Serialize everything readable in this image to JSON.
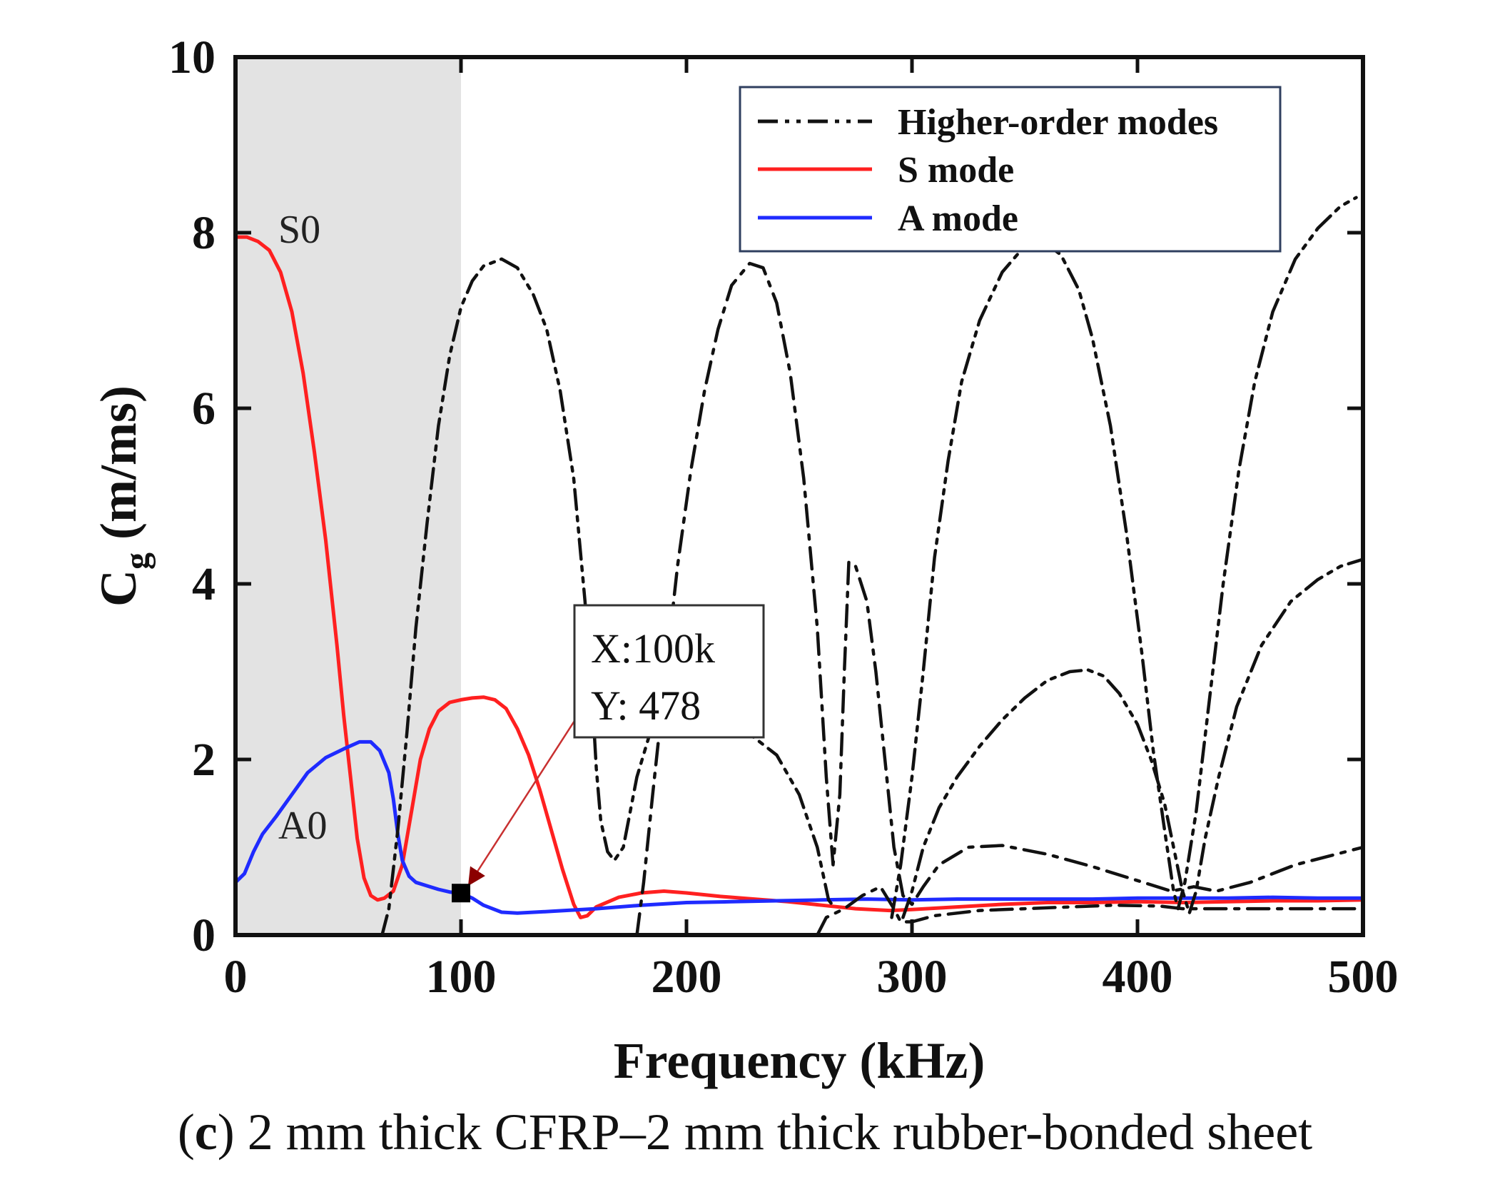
{
  "chart_data": {
    "type": "line",
    "xlabel": "Frequency (kHz)",
    "ylabel_main": "C",
    "ylabel_sub": "g",
    "ylabel_rest": " (m/ms)",
    "xlim": [
      0,
      500
    ],
    "ylim": [
      0,
      10
    ],
    "xticks": [
      0,
      100,
      200,
      300,
      400,
      500
    ],
    "yticks": [
      0,
      2,
      4,
      6,
      8,
      10
    ],
    "shaded_region": {
      "x_from": 0,
      "x_to": 100,
      "color": "#e3e3e3"
    },
    "legend": {
      "placement": "top-right",
      "entries": [
        {
          "label": "Higher-order modes",
          "style": "dashdot",
          "color": "#111111"
        },
        {
          "label": "S mode",
          "style": "solid",
          "color": "#ff2020"
        },
        {
          "label": "A mode",
          "style": "solid",
          "color": "#1f2bff"
        }
      ]
    },
    "annotations": {
      "S0": {
        "text": "S0",
        "x": 20,
        "y": 7.95
      },
      "A0": {
        "text": "A0",
        "x": 20,
        "y": 1.2
      },
      "marker": {
        "x": 100,
        "y": 0.478,
        "line1": "X:100k",
        "line2": "Y: 478"
      }
    },
    "series": [
      {
        "name": "S mode",
        "color": "#ff2020",
        "style": "solid",
        "points": [
          [
            0,
            7.95
          ],
          [
            5,
            7.95
          ],
          [
            10,
            7.9
          ],
          [
            15,
            7.8
          ],
          [
            20,
            7.55
          ],
          [
            25,
            7.1
          ],
          [
            30,
            6.4
          ],
          [
            35,
            5.5
          ],
          [
            40,
            4.5
          ],
          [
            45,
            3.3
          ],
          [
            48,
            2.5
          ],
          [
            51,
            1.8
          ],
          [
            54,
            1.1
          ],
          [
            57,
            0.65
          ],
          [
            60,
            0.45
          ],
          [
            63,
            0.4
          ],
          [
            66,
            0.42
          ],
          [
            70,
            0.5
          ],
          [
            74,
            0.8
          ],
          [
            78,
            1.4
          ],
          [
            82,
            2.0
          ],
          [
            86,
            2.35
          ],
          [
            90,
            2.55
          ],
          [
            95,
            2.65
          ],
          [
            100,
            2.68
          ],
          [
            105,
            2.7
          ],
          [
            110,
            2.71
          ],
          [
            115,
            2.68
          ],
          [
            120,
            2.58
          ],
          [
            125,
            2.35
          ],
          [
            130,
            2.05
          ],
          [
            135,
            1.65
          ],
          [
            140,
            1.2
          ],
          [
            145,
            0.75
          ],
          [
            150,
            0.35
          ],
          [
            153,
            0.2
          ],
          [
            156,
            0.22
          ],
          [
            160,
            0.32
          ],
          [
            170,
            0.43
          ],
          [
            180,
            0.48
          ],
          [
            190,
            0.5
          ],
          [
            200,
            0.48
          ],
          [
            215,
            0.44
          ],
          [
            230,
            0.41
          ],
          [
            245,
            0.38
          ],
          [
            260,
            0.34
          ],
          [
            275,
            0.3
          ],
          [
            290,
            0.28
          ],
          [
            300,
            0.29
          ],
          [
            320,
            0.32
          ],
          [
            340,
            0.35
          ],
          [
            360,
            0.37
          ],
          [
            380,
            0.37
          ],
          [
            400,
            0.38
          ],
          [
            420,
            0.37
          ],
          [
            440,
            0.38
          ],
          [
            460,
            0.39
          ],
          [
            480,
            0.39
          ],
          [
            500,
            0.4
          ]
        ]
      },
      {
        "name": "A mode",
        "color": "#1f2bff",
        "style": "solid",
        "points": [
          [
            0,
            0.6
          ],
          [
            4,
            0.7
          ],
          [
            8,
            0.95
          ],
          [
            12,
            1.15
          ],
          [
            18,
            1.35
          ],
          [
            25,
            1.6
          ],
          [
            32,
            1.85
          ],
          [
            40,
            2.02
          ],
          [
            48,
            2.12
          ],
          [
            55,
            2.2
          ],
          [
            60,
            2.2
          ],
          [
            64,
            2.1
          ],
          [
            68,
            1.85
          ],
          [
            70,
            1.55
          ],
          [
            72,
            1.15
          ],
          [
            74,
            0.85
          ],
          [
            77,
            0.67
          ],
          [
            80,
            0.6
          ],
          [
            85,
            0.56
          ],
          [
            90,
            0.52
          ],
          [
            95,
            0.49
          ],
          [
            100,
            0.478
          ],
          [
            105,
            0.42
          ],
          [
            110,
            0.34
          ],
          [
            118,
            0.26
          ],
          [
            125,
            0.25
          ],
          [
            140,
            0.27
          ],
          [
            160,
            0.3
          ],
          [
            180,
            0.34
          ],
          [
            200,
            0.37
          ],
          [
            220,
            0.38
          ],
          [
            240,
            0.39
          ],
          [
            260,
            0.4
          ],
          [
            280,
            0.41
          ],
          [
            300,
            0.4
          ],
          [
            320,
            0.41
          ],
          [
            340,
            0.41
          ],
          [
            360,
            0.41
          ],
          [
            380,
            0.41
          ],
          [
            400,
            0.42
          ],
          [
            420,
            0.42
          ],
          [
            440,
            0.42
          ],
          [
            460,
            0.43
          ],
          [
            480,
            0.42
          ],
          [
            500,
            0.42
          ]
        ]
      },
      {
        "name": "Higher-order mode 1",
        "color": "#111111",
        "style": "dashdotdot",
        "points": [
          [
            65,
            0.0
          ],
          [
            68,
            0.3
          ],
          [
            72,
            1.2
          ],
          [
            76,
            2.3
          ],
          [
            80,
            3.5
          ],
          [
            85,
            4.7
          ],
          [
            90,
            5.8
          ],
          [
            95,
            6.6
          ],
          [
            100,
            7.15
          ],
          [
            105,
            7.45
          ],
          [
            110,
            7.62
          ],
          [
            118,
            7.7
          ],
          [
            125,
            7.6
          ],
          [
            132,
            7.3
          ],
          [
            138,
            6.9
          ],
          [
            144,
            6.2
          ],
          [
            150,
            5.2
          ],
          [
            155,
            3.8
          ],
          [
            158,
            2.8
          ],
          [
            160,
            1.9
          ],
          [
            162,
            1.3
          ],
          [
            165,
            0.95
          ],
          [
            168,
            0.85
          ],
          [
            172,
            1.0
          ],
          [
            178,
            1.8
          ],
          [
            185,
            2.4
          ],
          [
            195,
            2.6
          ],
          [
            210,
            2.5
          ],
          [
            225,
            2.35
          ],
          [
            240,
            2.05
          ],
          [
            250,
            1.6
          ],
          [
            258,
            1.0
          ],
          [
            263,
            0.4
          ],
          [
            266,
            0.3
          ]
        ]
      },
      {
        "name": "Higher-order mode 2",
        "color": "#111111",
        "style": "dashdot",
        "points": [
          [
            178,
            0.0
          ],
          [
            181,
            0.6
          ],
          [
            185,
            1.6
          ],
          [
            190,
            2.8
          ],
          [
            196,
            4.2
          ],
          [
            202,
            5.3
          ],
          [
            208,
            6.2
          ],
          [
            214,
            6.9
          ],
          [
            220,
            7.4
          ],
          [
            228,
            7.65
          ],
          [
            234,
            7.6
          ],
          [
            240,
            7.2
          ],
          [
            246,
            6.4
          ],
          [
            252,
            5.2
          ],
          [
            258,
            3.5
          ],
          [
            262,
            1.8
          ],
          [
            265,
            0.8
          ],
          [
            268,
            1.6
          ],
          [
            270,
            3.0
          ],
          [
            272,
            4.25
          ],
          [
            275,
            4.2
          ],
          [
            280,
            3.8
          ],
          [
            284,
            3.0
          ],
          [
            288,
            2.0
          ],
          [
            292,
            1.0
          ],
          [
            296,
            0.45
          ],
          [
            300,
            0.35
          ],
          [
            305,
            0.55
          ],
          [
            312,
            0.8
          ],
          [
            325,
            1.0
          ],
          [
            340,
            1.02
          ],
          [
            360,
            0.92
          ],
          [
            380,
            0.78
          ],
          [
            400,
            0.62
          ],
          [
            415,
            0.5
          ],
          [
            425,
            0.55
          ],
          [
            435,
            0.5
          ],
          [
            450,
            0.6
          ],
          [
            470,
            0.8
          ],
          [
            500,
            1.0
          ]
        ]
      },
      {
        "name": "Higher-order mode 3",
        "color": "#111111",
        "style": "dashdot",
        "points": [
          [
            258,
            0.0
          ],
          [
            262,
            0.2
          ],
          [
            270,
            0.3
          ],
          [
            278,
            0.45
          ],
          [
            286,
            0.55
          ],
          [
            292,
            0.3
          ],
          [
            295,
            0.15
          ],
          [
            300,
            0.15
          ],
          [
            310,
            0.22
          ],
          [
            330,
            0.28
          ],
          [
            350,
            0.3
          ],
          [
            370,
            0.32
          ],
          [
            390,
            0.34
          ],
          [
            410,
            0.33
          ],
          [
            420,
            0.3
          ],
          [
            440,
            0.3
          ],
          [
            460,
            0.3
          ],
          [
            480,
            0.3
          ],
          [
            500,
            0.3
          ]
        ]
      },
      {
        "name": "Higher-order mode 4",
        "color": "#111111",
        "style": "dashdotdot",
        "points": [
          [
            296,
            0.2
          ],
          [
            300,
            0.5
          ],
          [
            305,
            1.0
          ],
          [
            312,
            1.45
          ],
          [
            320,
            1.8
          ],
          [
            330,
            2.15
          ],
          [
            340,
            2.45
          ],
          [
            350,
            2.7
          ],
          [
            360,
            2.9
          ],
          [
            370,
            3.0
          ],
          [
            378,
            3.02
          ],
          [
            385,
            2.95
          ],
          [
            392,
            2.75
          ],
          [
            400,
            2.4
          ],
          [
            406,
            2.0
          ],
          [
            412,
            1.5
          ],
          [
            416,
            1.0
          ],
          [
            420,
            0.5
          ],
          [
            423,
            0.25
          ],
          [
            426,
            0.5
          ],
          [
            430,
            1.1
          ],
          [
            436,
            1.8
          ],
          [
            444,
            2.6
          ],
          [
            455,
            3.3
          ],
          [
            468,
            3.8
          ],
          [
            480,
            4.05
          ],
          [
            490,
            4.2
          ],
          [
            500,
            4.28
          ]
        ]
      },
      {
        "name": "Higher-order mode 5",
        "color": "#111111",
        "style": "dashdotdot",
        "points": [
          [
            291,
            0.2
          ],
          [
            295,
            0.8
          ],
          [
            300,
            1.8
          ],
          [
            305,
            3.0
          ],
          [
            310,
            4.3
          ],
          [
            316,
            5.4
          ],
          [
            322,
            6.3
          ],
          [
            330,
            7.0
          ],
          [
            340,
            7.55
          ],
          [
            350,
            7.85
          ],
          [
            358,
            7.9
          ],
          [
            366,
            7.75
          ],
          [
            374,
            7.35
          ],
          [
            380,
            6.8
          ],
          [
            388,
            5.8
          ],
          [
            395,
            4.6
          ],
          [
            402,
            3.2
          ],
          [
            407,
            2.1
          ],
          [
            412,
            1.2
          ],
          [
            416,
            0.5
          ],
          [
            418,
            0.3
          ],
          [
            421,
            0.6
          ],
          [
            426,
            1.4
          ],
          [
            432,
            2.7
          ],
          [
            438,
            4.0
          ],
          [
            445,
            5.3
          ],
          [
            452,
            6.3
          ],
          [
            460,
            7.1
          ],
          [
            470,
            7.7
          ],
          [
            480,
            8.05
          ],
          [
            490,
            8.3
          ],
          [
            497,
            8.4
          ]
        ]
      }
    ]
  },
  "caption": {
    "open": "(",
    "letter": "c",
    "text": ") 2 mm thick CFRP–2 mm thick rubber-bonded sheet"
  }
}
